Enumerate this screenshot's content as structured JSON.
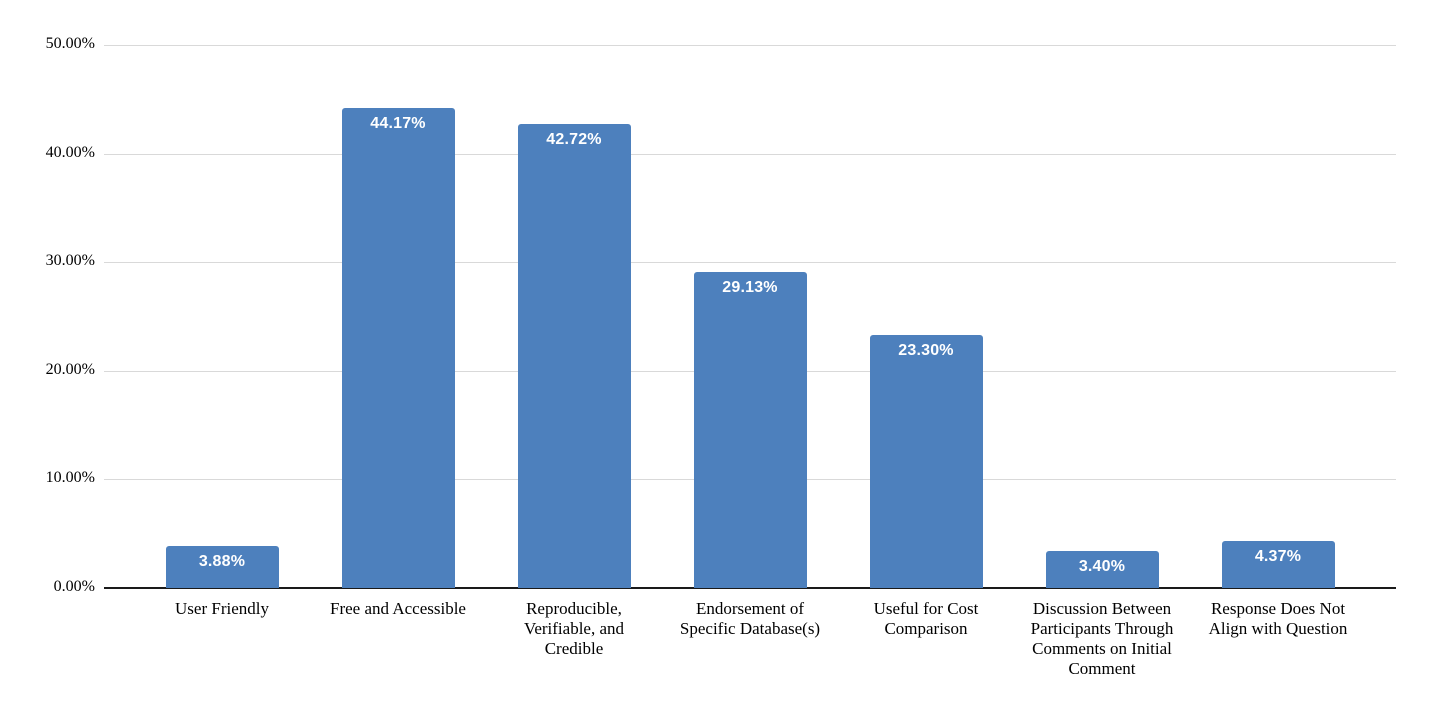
{
  "chart_data": {
    "type": "bar",
    "title": "",
    "xlabel": "",
    "ylabel": "",
    "categories": [
      "User Friendly",
      "Free and Accessible",
      "Reproducible, Verifiable, and Credible",
      "Endorsement of Specific Database(s)",
      "Useful for Cost Comparison",
      "Discussion Between Participants Through Comments on Initial Comment",
      "Response Does Not Align with Question"
    ],
    "category_display": [
      "User Friendly",
      "Free and Accessible",
      "Reproducible,\nVerifiable, and\nCredible",
      "Endorsement of\nSpecific Database(s)",
      "Useful for Cost\nComparison",
      "Discussion Between\nParticipants Through\nComments on Initial\nComment",
      "Response Does Not\nAlign with Question"
    ],
    "values": [
      3.88,
      44.17,
      42.72,
      29.13,
      23.3,
      3.4,
      4.37
    ],
    "value_labels": [
      "3.88%",
      "44.17%",
      "42.72%",
      "29.13%",
      "23.30%",
      "3.40%",
      "4.37%"
    ],
    "y_ticks": [
      "0.00%",
      "10.00%",
      "20.00%",
      "30.00%",
      "40.00%",
      "50.00%"
    ],
    "ylim": [
      0,
      50
    ],
    "grid": true,
    "legend": "none",
    "bar_color": "#4d80bd",
    "value_label_color": "#ffffff",
    "gridline_color": "#d9d9d9",
    "axis_color": "#1a1a1a",
    "text_color": "#000000",
    "background": "#ffffff"
  }
}
